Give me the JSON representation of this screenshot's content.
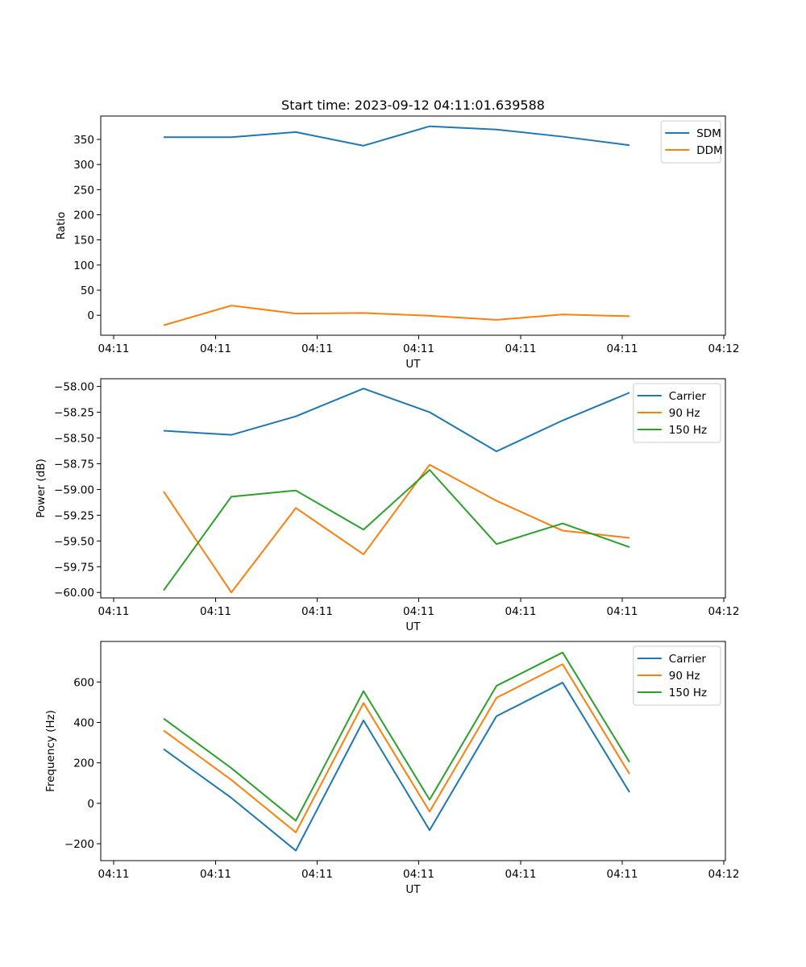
{
  "figure_title": "Start time: 2023-09-12 04:11:01.639588",
  "chart_data": [
    {
      "type": "line",
      "title": "Start time: 2023-09-12 04:11:01.639588",
      "xlabel": "UT",
      "ylabel": "Ratio",
      "x_tick_labels": [
        "04:11",
        "04:11",
        "04:11",
        "04:11",
        "04:11",
        "04:11",
        "04:12"
      ],
      "y_ticks": [
        0,
        50,
        100,
        150,
        200,
        250,
        300,
        350
      ],
      "ylim": [
        -39.75,
        396.5
      ],
      "legend_position": "top-right",
      "colors": [
        "#1f77b4",
        "#ff7f0e"
      ],
      "series": [
        {
          "name": "SDM",
          "values": [
            354.4,
            354.4,
            364.6,
            337.4,
            376.1,
            369.6,
            355.5,
            338.4
          ]
        },
        {
          "name": "DDM",
          "values": [
            -19.9,
            19.3,
            3.3,
            4.5,
            -1.0,
            -9.1,
            1.5,
            -1.9
          ]
        }
      ]
    },
    {
      "type": "line",
      "xlabel": "UT",
      "ylabel": "Power (dB)",
      "x_tick_labels": [
        "04:11",
        "04:11",
        "04:11",
        "04:11",
        "04:11",
        "04:11",
        "04:12"
      ],
      "y_ticks": [
        -60.0,
        -59.75,
        -59.5,
        -59.25,
        -59.0,
        -58.75,
        -58.5,
        -58.25,
        -58.0
      ],
      "y_tick_labels": [
        "−60.00",
        "−59.75",
        "−59.50",
        "−59.25",
        "−59.00",
        "−58.75",
        "−58.50",
        "−58.25",
        "−58.00"
      ],
      "ylim": [
        -60.053,
        -57.925
      ],
      "legend_position": "top-right",
      "colors": [
        "#1f77b4",
        "#ff7f0e",
        "#2ca02c"
      ],
      "series": [
        {
          "name": "Carrier",
          "values": [
            -58.43,
            -58.47,
            -58.29,
            -58.02,
            -58.25,
            -58.63,
            -58.33,
            -58.06
          ]
        },
        {
          "name": "90 Hz",
          "values": [
            -59.02,
            -60.0,
            -59.18,
            -59.63,
            -58.76,
            -59.11,
            -59.4,
            -59.47
          ]
        },
        {
          "name": "150 Hz",
          "values": [
            -59.98,
            -59.07,
            -59.01,
            -59.39,
            -58.81,
            -59.53,
            -59.33,
            -59.56
          ]
        }
      ]
    },
    {
      "type": "line",
      "xlabel": "UT",
      "ylabel": "Frequency (Hz)",
      "x_tick_labels": [
        "04:11",
        "04:11",
        "04:11",
        "04:11",
        "04:11",
        "04:11",
        "04:12"
      ],
      "y_ticks": [
        -200,
        0,
        200,
        400,
        600
      ],
      "y_tick_labels": [
        "−200",
        "0",
        "200",
        "400",
        "600"
      ],
      "ylim": [
        -283.5,
        800.5
      ],
      "legend_position": "top-right",
      "colors": [
        "#1f77b4",
        "#ff7f0e",
        "#2ca02c"
      ],
      "series": [
        {
          "name": "Carrier",
          "values": [
            268,
            27,
            -234,
            410,
            -133,
            431,
            597,
            55
          ]
        },
        {
          "name": "90 Hz",
          "values": [
            360,
            116,
            -144,
            496,
            -41,
            522,
            688,
            145
          ]
        },
        {
          "name": "150 Hz",
          "values": [
            419,
            174,
            -86,
            555,
            18,
            581,
            746,
            204
          ]
        }
      ]
    }
  ]
}
